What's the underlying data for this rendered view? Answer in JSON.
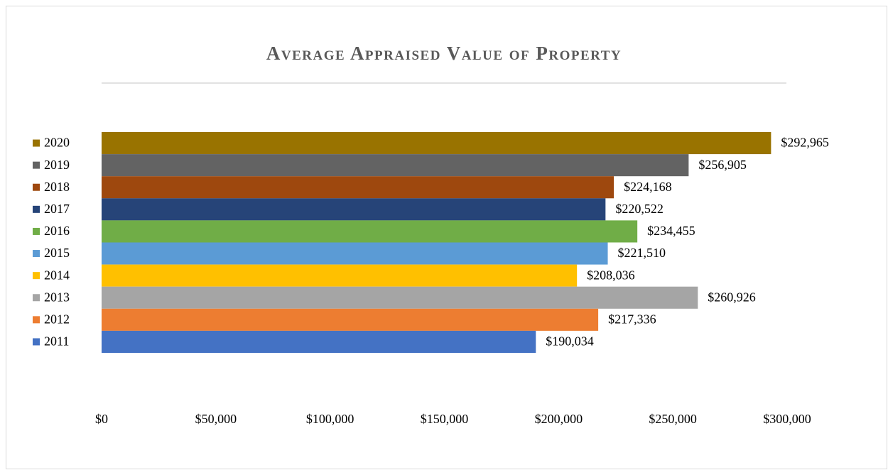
{
  "chart_data": {
    "type": "bar",
    "orientation": "horizontal",
    "title": "Average Appraised Value of Property",
    "series": [
      {
        "name": "2020",
        "color": "#997300",
        "values": [
          292965
        ],
        "value_labels": [
          "$292,965"
        ]
      },
      {
        "name": "2019",
        "color": "#636363",
        "values": [
          256905
        ],
        "value_labels": [
          "$256,905"
        ]
      },
      {
        "name": "2018",
        "color": "#9e480e",
        "values": [
          224168
        ],
        "value_labels": [
          "$224,168"
        ]
      },
      {
        "name": "2017",
        "color": "#264478",
        "values": [
          220522
        ],
        "value_labels": [
          "$220,522"
        ]
      },
      {
        "name": "2016",
        "color": "#70ad47",
        "values": [
          234455
        ],
        "value_labels": [
          "$234,455"
        ]
      },
      {
        "name": "2015",
        "color": "#5b9bd5",
        "values": [
          221510
        ],
        "value_labels": [
          "$221,510"
        ]
      },
      {
        "name": "2014",
        "color": "#ffc000",
        "values": [
          208036
        ],
        "value_labels": [
          "$208,036"
        ]
      },
      {
        "name": "2013",
        "color": "#a5a5a5",
        "values": [
          260926
        ],
        "value_labels": [
          "$260,926"
        ]
      },
      {
        "name": "2012",
        "color": "#ed7d31",
        "values": [
          217336
        ],
        "value_labels": [
          "$217,336"
        ]
      },
      {
        "name": "2011",
        "color": "#4472c4",
        "values": [
          190034
        ],
        "value_labels": [
          "$190,034"
        ]
      }
    ],
    "xlim": [
      0,
      300000
    ],
    "xticks": [
      {
        "value": 0,
        "label": "$0"
      },
      {
        "value": 50000,
        "label": "$50,000"
      },
      {
        "value": 100000,
        "label": "$100,000"
      },
      {
        "value": 150000,
        "label": "$150,000"
      },
      {
        "value": 200000,
        "label": "$200,000"
      },
      {
        "value": 250000,
        "label": "$250,000"
      },
      {
        "value": 300000,
        "label": "$300,000"
      }
    ],
    "legend": "left",
    "grid": false
  }
}
